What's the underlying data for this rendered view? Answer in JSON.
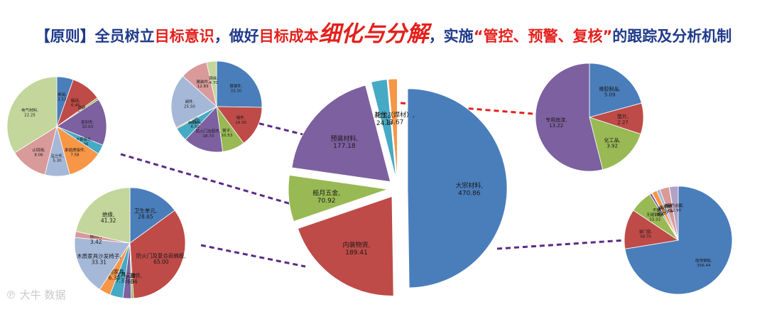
{
  "headline": {
    "part1": "【原则】全员树立",
    "part2": "目标意识",
    "part3": "，做好",
    "part4": "目标成本",
    "part5": "细化与分解",
    "part6": "，实施",
    "part7": "“管控、预警、复核”",
    "part8": "的跟踪及分析机制"
  },
  "watermark": "℗ 大牛 数据",
  "colors": {
    "blue": "#4a7ebb",
    "red": "#be4b48",
    "green": "#98b954",
    "purple": "#7d60a0",
    "teal": "#46aac5",
    "orange": "#f79646",
    "lightblue": "#a5b8d8",
    "pink": "#d99a9a",
    "lime": "#c3d69b",
    "lavender": "#b3a2c7",
    "cyan": "#93cddd",
    "tan": "#fac090",
    "darkblue": "#1f497d",
    "connector": "#5b2a86",
    "connector_red": "#e3201c"
  },
  "chart_data": [
    {
      "id": "main",
      "type": "pie",
      "title": "",
      "exploded": true,
      "slices": [
        {
          "label": "大宗材料",
          "value": 470.86,
          "color": "blue"
        },
        {
          "label": "内装物资",
          "value": 189.41,
          "color": "red"
        },
        {
          "label": "船月五金",
          "value": 70.92,
          "color": "green"
        },
        {
          "label": "预装材料",
          "value": 177.18,
          "color": "purple"
        },
        {
          "label": "化工品",
          "value": 24.36,
          "color": "teal"
        },
        {
          "label": "其他（焊材）",
          "value": 13.67,
          "color": "orange"
        }
      ]
    },
    {
      "id": "top-left",
      "type": "pie",
      "title": "",
      "slices": [
        {
          "label": "闸阀",
          "value": 3.53,
          "color": "blue"
        },
        {
          "label": "蝶阀",
          "value": 6.46,
          "color": "red"
        },
        {
          "label": "滤器",
          "value": 0.43,
          "color": "green"
        },
        {
          "label": "密封件",
          "value": 10.03,
          "color": "purple"
        },
        {
          "label": "卡套接头",
          "value": 2.06,
          "color": "teal"
        },
        {
          "label": "承插焊接件",
          "value": 7.58,
          "color": "orange"
        },
        {
          "label": "法兰件",
          "value": 5.3,
          "color": "lightblue"
        },
        {
          "label": "止回阀",
          "value": 8.06,
          "color": "pink"
        },
        {
          "label": "电气材料",
          "value": 22.25,
          "color": "lime"
        }
      ]
    },
    {
      "id": "top-mid",
      "type": "pie",
      "title": "",
      "slices": [
        {
          "label": "铸钢件",
          "value": 33.3,
          "color": "blue"
        },
        {
          "label": "锻件",
          "value": 19.3,
          "color": "red"
        },
        {
          "label": "管子",
          "value": 10.53,
          "color": "green"
        },
        {
          "label": "防火门及配件",
          "value": 18.73,
          "color": "purple"
        },
        {
          "label": "减震器",
          "value": 6.5,
          "color": "teal"
        },
        {
          "label": "压力表",
          "value": 0.53,
          "color": "orange"
        },
        {
          "label": "阀件",
          "value": 25.5,
          "color": "lightblue"
        },
        {
          "label": "舾装件",
          "value": 12.83,
          "color": "pink"
        },
        {
          "label": "钢丝",
          "value": 4.7,
          "color": "lime"
        }
      ]
    },
    {
      "id": "top-right",
      "type": "pie",
      "title": "",
      "slices": [
        {
          "label": "橡胶制品",
          "value": 5.09,
          "color": "blue"
        },
        {
          "label": "垫片",
          "value": 2.27,
          "color": "red"
        },
        {
          "label": "化工品",
          "value": 3.92,
          "color": "green"
        },
        {
          "label": "专用底漆",
          "value": 13.22,
          "color": "purple"
        }
      ]
    },
    {
      "id": "bottom-left",
      "type": "pie",
      "title": "",
      "slices": [
        {
          "label": "卫生单元",
          "value": 28.65,
          "color": "blue"
        },
        {
          "label": "防火门及复合岩棉板",
          "value": 65.0,
          "color": "red"
        },
        {
          "label": "地砖",
          "value": 1.34,
          "color": "green"
        },
        {
          "label": "配件标准件",
          "value": 4.6,
          "color": "purple"
        },
        {
          "label": "家具",
          "value": 7.33,
          "color": "teal"
        },
        {
          "label": "钢制家具",
          "value": 6.35,
          "color": "orange"
        },
        {
          "label": "木质家具沙发椅子",
          "value": 33.31,
          "color": "lightblue"
        },
        {
          "label": "橱柜",
          "value": 3.42,
          "color": "pink"
        },
        {
          "label": "绝缘",
          "value": 41.32,
          "color": "lime"
        }
      ]
    },
    {
      "id": "bottom-right",
      "type": "pie",
      "title": "",
      "slices": [
        {
          "label": "船用钢板",
          "value": 356.44,
          "color": "blue"
        },
        {
          "label": "钢门窗",
          "value": 58.7,
          "color": "red"
        },
        {
          "label": "无缝钢管",
          "value": 33.33,
          "color": "green"
        },
        {
          "label": "不锈钢管",
          "value": 3.4,
          "color": "purple"
        },
        {
          "label": "铜管",
          "value": 0.66,
          "color": "teal"
        },
        {
          "label": "铜排",
          "value": 7.53,
          "color": "orange"
        },
        {
          "label": "铝型材",
          "value": 5.0,
          "color": "lightblue"
        },
        {
          "label": "钢材",
          "value": 13.87,
          "color": "pink"
        },
        {
          "label": "普通钢板",
          "value": 0.36,
          "color": "lime"
        },
        {
          "label": "有色金属",
          "value": 12.9,
          "color": "lavender"
        }
      ]
    }
  ]
}
